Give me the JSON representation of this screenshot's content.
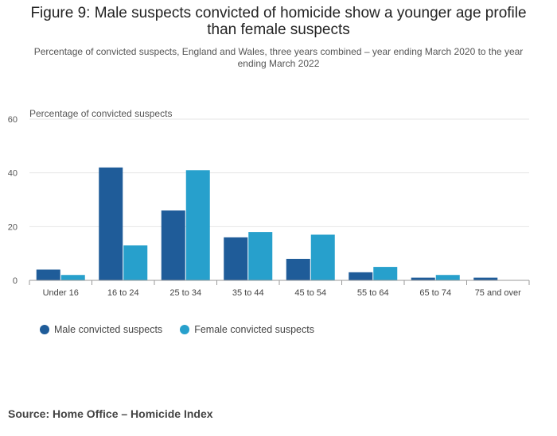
{
  "title": "Figure 9: Male suspects convicted of homicide show a younger age profile than female suspects",
  "subtitle": "Percentage of convicted suspects, England and Wales, three years combined – year ending March 2020 to the year ending March 2022",
  "source": "Source: Home Office – Homicide Index",
  "colors": {
    "male": "#1f5c99",
    "female": "#27a0cc"
  },
  "chart_data": {
    "type": "bar",
    "title": "Figure 9: Male suspects convicted of homicide show a younger age profile than female suspects",
    "ylabel": "Percentage of convicted suspects",
    "xlabel": "",
    "ylim": [
      0,
      60
    ],
    "yticks": [
      0,
      20,
      40,
      60
    ],
    "categories": [
      "Under 16",
      "16 to 24",
      "25 to 34",
      "35 to 44",
      "45 to 54",
      "55 to 64",
      "65 to 74",
      "75 and over"
    ],
    "series": [
      {
        "name": "Male convicted suspects",
        "values": [
          4,
          42,
          26,
          16,
          8,
          3,
          1,
          1
        ]
      },
      {
        "name": "Female convicted suspects",
        "values": [
          2,
          13,
          41,
          18,
          17,
          5,
          2,
          0
        ]
      }
    ],
    "legend": "bottom-left",
    "grid": true
  }
}
